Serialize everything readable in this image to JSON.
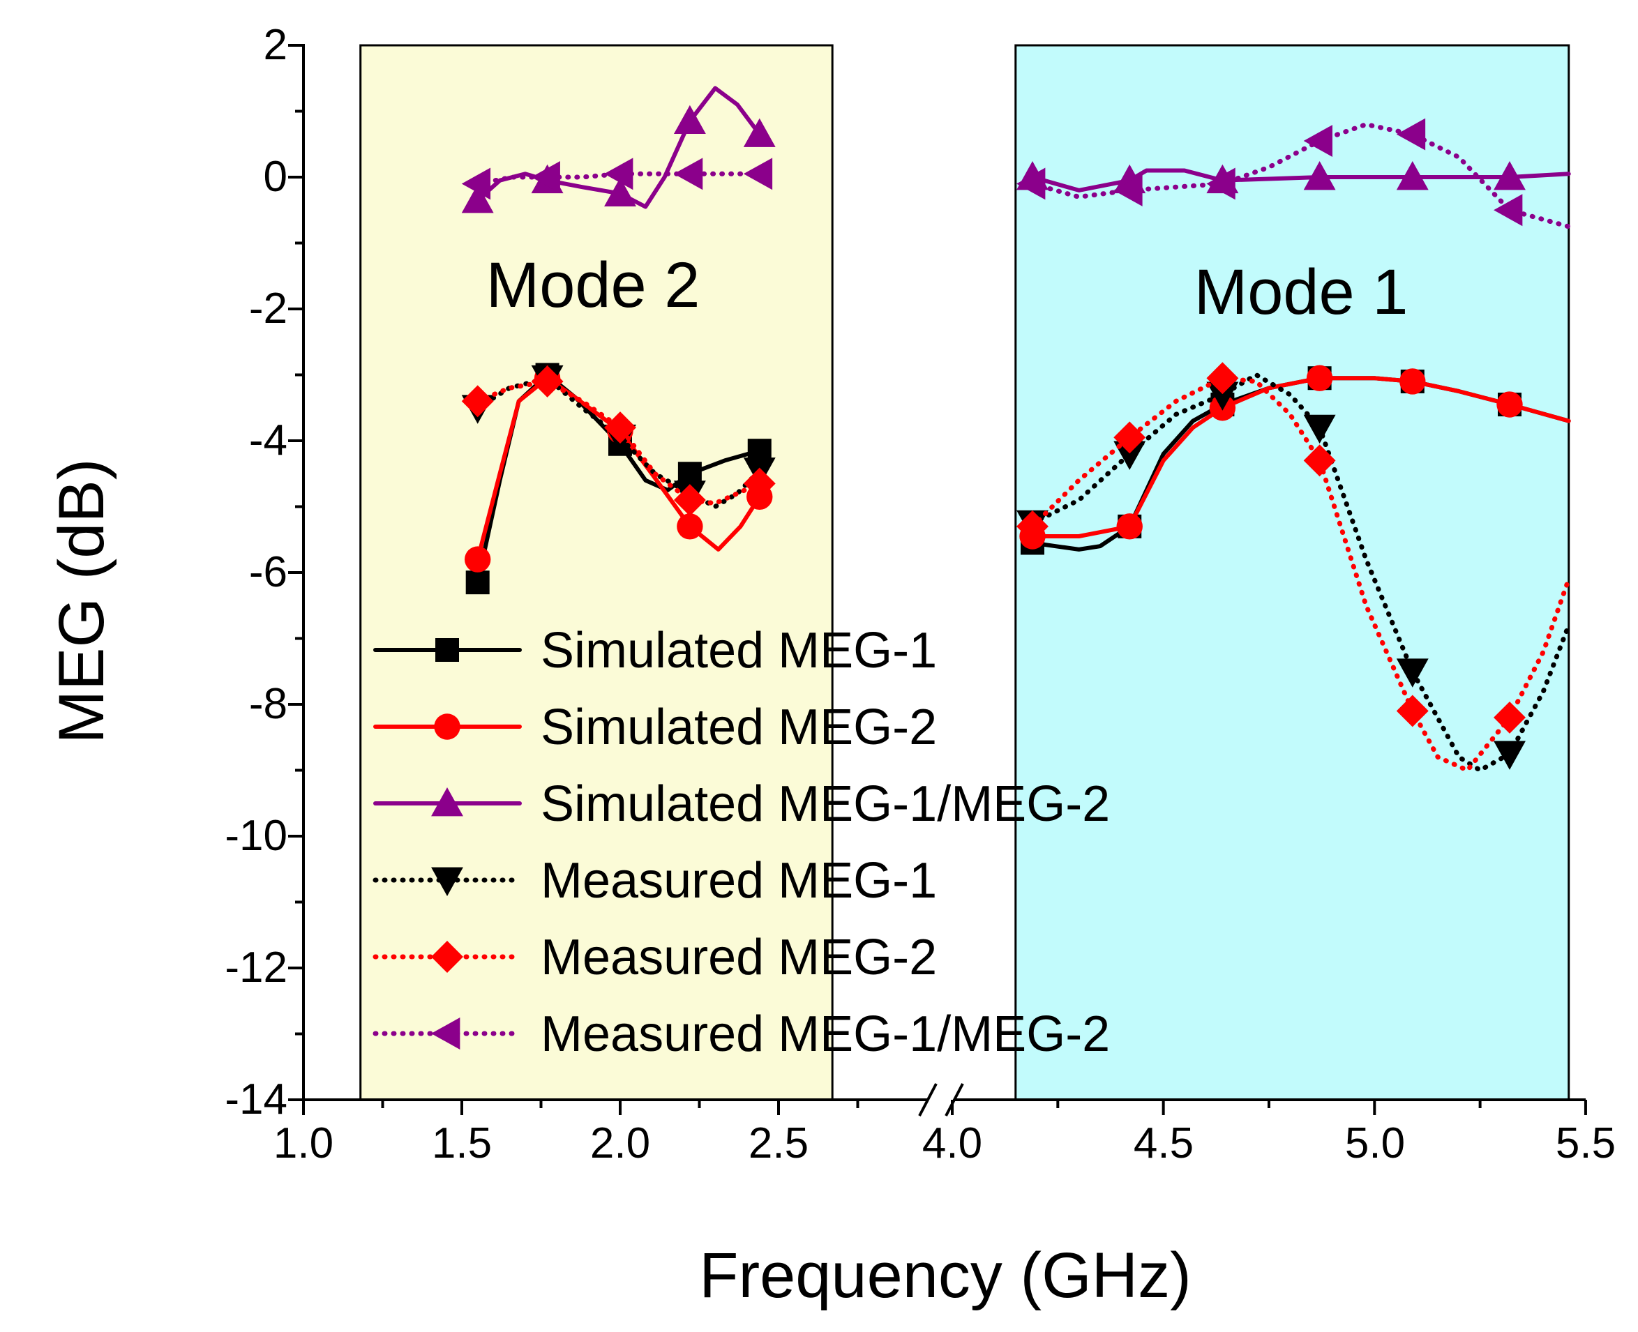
{
  "chart_data": {
    "type": "line",
    "xlabel": "Frequency (GHz)",
    "ylabel": "MEG (dB)",
    "ylim": [
      -14,
      2
    ],
    "y_ticks": [
      "2",
      "0",
      "-2",
      "-4",
      "-6",
      "-8",
      "-10",
      "-12",
      "-14"
    ],
    "x_ticks_left": [
      "1.0",
      "1.5",
      "2.0",
      "2.5"
    ],
    "x_ticks_right": [
      "4.0",
      "4.5",
      "5.0",
      "5.5"
    ],
    "x_axis": "broken axis: 1.0–2.75 GHz and 4.0–5.5 GHz",
    "regions": [
      {
        "label": "Mode 2",
        "x_start": 1.18,
        "x_end": 2.67,
        "color": "#fbfbd7"
      },
      {
        "label": "Mode 1",
        "x_start": 4.15,
        "x_end": 5.46,
        "color": "#c2fbfc"
      }
    ],
    "series": [
      {
        "name": "Simulated MEG-1",
        "color": "#000000",
        "style": "solid",
        "marker": "square",
        "markers_x": [
          1.55,
          1.77,
          2.0,
          2.22,
          2.44,
          4.19,
          4.42,
          4.64,
          4.87,
          5.09,
          5.32
        ],
        "markers_y": [
          -6.15,
          -3.0,
          -4.05,
          -4.5,
          -4.15,
          -5.55,
          -5.3,
          -3.45,
          -3.05,
          -3.1,
          -3.45
        ],
        "curve": [
          [
            1.55,
            -6.15
          ],
          [
            1.62,
            -4.6
          ],
          [
            1.68,
            -3.4
          ],
          [
            1.77,
            -3.0
          ],
          [
            1.86,
            -3.35
          ],
          [
            1.93,
            -3.7
          ],
          [
            2.0,
            -4.05
          ],
          [
            2.08,
            -4.6
          ],
          [
            2.15,
            -4.75
          ],
          [
            2.22,
            -4.5
          ],
          [
            2.33,
            -4.3
          ],
          [
            2.44,
            -4.15
          ],
          [
            null,
            null
          ],
          [
            4.19,
            -5.55
          ],
          [
            4.3,
            -5.65
          ],
          [
            4.35,
            -5.6
          ],
          [
            4.42,
            -5.3
          ],
          [
            4.5,
            -4.2
          ],
          [
            4.57,
            -3.7
          ],
          [
            4.64,
            -3.45
          ],
          [
            4.75,
            -3.2
          ],
          [
            4.87,
            -3.05
          ],
          [
            5.0,
            -3.05
          ],
          [
            5.09,
            -3.1
          ],
          [
            5.2,
            -3.25
          ],
          [
            5.32,
            -3.45
          ],
          [
            5.46,
            -3.7
          ]
        ]
      },
      {
        "name": "Simulated MEG-2",
        "color": "#ff0000",
        "style": "solid",
        "marker": "circle",
        "markers_x": [
          1.55,
          1.77,
          2.0,
          2.22,
          2.44,
          4.19,
          4.42,
          4.64,
          4.87,
          5.09,
          5.32
        ],
        "markers_y": [
          -5.8,
          -3.05,
          -3.85,
          -5.3,
          -4.85,
          -5.45,
          -5.3,
          -3.5,
          -3.05,
          -3.1,
          -3.45
        ],
        "curve": [
          [
            1.55,
            -5.8
          ],
          [
            1.62,
            -4.5
          ],
          [
            1.68,
            -3.4
          ],
          [
            1.77,
            -3.05
          ],
          [
            1.86,
            -3.35
          ],
          [
            1.93,
            -3.6
          ],
          [
            2.0,
            -3.85
          ],
          [
            2.1,
            -4.5
          ],
          [
            2.22,
            -5.3
          ],
          [
            2.31,
            -5.65
          ],
          [
            2.38,
            -5.3
          ],
          [
            2.44,
            -4.85
          ],
          [
            null,
            null
          ],
          [
            4.19,
            -5.45
          ],
          [
            4.3,
            -5.45
          ],
          [
            4.42,
            -5.3
          ],
          [
            4.5,
            -4.3
          ],
          [
            4.57,
            -3.8
          ],
          [
            4.64,
            -3.5
          ],
          [
            4.75,
            -3.2
          ],
          [
            4.87,
            -3.05
          ],
          [
            5.0,
            -3.05
          ],
          [
            5.09,
            -3.1
          ],
          [
            5.2,
            -3.25
          ],
          [
            5.32,
            -3.45
          ],
          [
            5.46,
            -3.7
          ]
        ]
      },
      {
        "name": "Simulated MEG-1/MEG-2",
        "color": "#8b008b",
        "style": "solid",
        "marker": "triangle-up",
        "markers_x": [
          1.55,
          1.77,
          2.0,
          2.22,
          2.44,
          4.19,
          4.42,
          4.64,
          4.87,
          5.09,
          5.32
        ],
        "markers_y": [
          -0.35,
          -0.05,
          -0.25,
          0.85,
          0.65,
          0.0,
          -0.05,
          -0.05,
          0.0,
          0.0,
          0.0
        ],
        "curve": [
          [
            1.55,
            -0.35
          ],
          [
            1.62,
            -0.05
          ],
          [
            1.7,
            0.05
          ],
          [
            1.77,
            -0.05
          ],
          [
            1.88,
            -0.15
          ],
          [
            2.0,
            -0.25
          ],
          [
            2.08,
            -0.45
          ],
          [
            2.14,
            0.0
          ],
          [
            2.22,
            0.85
          ],
          [
            2.3,
            1.35
          ],
          [
            2.37,
            1.1
          ],
          [
            2.44,
            0.65
          ],
          [
            null,
            null
          ],
          [
            4.19,
            0.0
          ],
          [
            4.3,
            -0.2
          ],
          [
            4.42,
            -0.05
          ],
          [
            4.46,
            0.1
          ],
          [
            4.55,
            0.1
          ],
          [
            4.64,
            -0.05
          ],
          [
            4.87,
            0.0
          ],
          [
            5.09,
            0.0
          ],
          [
            5.32,
            0.0
          ],
          [
            5.46,
            0.05
          ]
        ]
      },
      {
        "name": "Measured MEG-1",
        "color": "#000000",
        "style": "dotted",
        "marker": "triangle-down",
        "markers_x": [
          1.55,
          1.77,
          2.0,
          2.22,
          2.44,
          4.19,
          4.42,
          4.64,
          4.87,
          5.09,
          5.32
        ],
        "markers_y": [
          -3.5,
          -3.05,
          -3.95,
          -4.8,
          -4.45,
          -5.25,
          -4.2,
          -3.3,
          -3.8,
          -7.5,
          -8.75
        ],
        "curve": [
          [
            1.55,
            -3.5
          ],
          [
            1.65,
            -3.2
          ],
          [
            1.77,
            -3.05
          ],
          [
            1.88,
            -3.5
          ],
          [
            2.0,
            -3.95
          ],
          [
            2.11,
            -4.5
          ],
          [
            2.22,
            -4.8
          ],
          [
            2.3,
            -5.0
          ],
          [
            2.37,
            -4.8
          ],
          [
            2.44,
            -4.45
          ],
          [
            null,
            null
          ],
          [
            4.19,
            -5.25
          ],
          [
            4.3,
            -4.9
          ],
          [
            4.42,
            -4.2
          ],
          [
            4.53,
            -3.6
          ],
          [
            4.64,
            -3.3
          ],
          [
            4.72,
            -3.0
          ],
          [
            4.8,
            -3.3
          ],
          [
            4.87,
            -3.8
          ],
          [
            4.98,
            -5.8
          ],
          [
            5.09,
            -7.5
          ],
          [
            5.2,
            -8.8
          ],
          [
            5.25,
            -9.0
          ],
          [
            5.32,
            -8.75
          ],
          [
            5.4,
            -7.8
          ],
          [
            5.46,
            -6.8
          ]
        ]
      },
      {
        "name": "Measured MEG-2",
        "color": "#ff0000",
        "style": "dotted",
        "marker": "diamond",
        "markers_x": [
          1.55,
          1.77,
          2.0,
          2.22,
          2.44,
          4.19,
          4.42,
          4.64,
          4.87,
          5.09,
          5.32
        ],
        "markers_y": [
          -3.4,
          -3.1,
          -3.8,
          -4.9,
          -4.65,
          -5.3,
          -3.95,
          -3.05,
          -4.3,
          -8.1,
          -8.2
        ],
        "curve": [
          [
            1.55,
            -3.4
          ],
          [
            1.65,
            -3.2
          ],
          [
            1.77,
            -3.1
          ],
          [
            1.88,
            -3.4
          ],
          [
            2.0,
            -3.8
          ],
          [
            2.11,
            -4.5
          ],
          [
            2.22,
            -4.9
          ],
          [
            2.3,
            -4.95
          ],
          [
            2.37,
            -4.8
          ],
          [
            2.44,
            -4.65
          ],
          [
            null,
            null
          ],
          [
            4.19,
            -5.3
          ],
          [
            4.3,
            -4.6
          ],
          [
            4.42,
            -3.95
          ],
          [
            4.53,
            -3.4
          ],
          [
            4.64,
            -3.05
          ],
          [
            4.72,
            -3.1
          ],
          [
            4.8,
            -3.6
          ],
          [
            4.87,
            -4.3
          ],
          [
            4.98,
            -6.5
          ],
          [
            5.09,
            -8.1
          ],
          [
            5.15,
            -8.8
          ],
          [
            5.22,
            -9.0
          ],
          [
            5.32,
            -8.2
          ],
          [
            5.4,
            -7.2
          ],
          [
            5.46,
            -6.1
          ]
        ]
      },
      {
        "name": "Measured MEG-1/MEG-2",
        "color": "#8b008b",
        "style": "dotted",
        "marker": "triangle-left",
        "markers_x": [
          1.55,
          1.77,
          2.0,
          2.22,
          2.44,
          4.19,
          4.42,
          4.64,
          4.87,
          5.09,
          5.32
        ],
        "markers_y": [
          -0.1,
          0.0,
          0.05,
          0.05,
          0.05,
          -0.1,
          -0.2,
          -0.1,
          0.55,
          0.65,
          -0.5
        ],
        "curve": [
          [
            1.55,
            -0.1
          ],
          [
            1.66,
            0.0
          ],
          [
            1.77,
            0.0
          ],
          [
            1.88,
            0.0
          ],
          [
            2.0,
            0.05
          ],
          [
            2.11,
            0.05
          ],
          [
            2.22,
            0.05
          ],
          [
            2.33,
            0.05
          ],
          [
            2.44,
            0.05
          ],
          [
            null,
            null
          ],
          [
            4.19,
            -0.1
          ],
          [
            4.3,
            -0.3
          ],
          [
            4.42,
            -0.2
          ],
          [
            4.53,
            -0.15
          ],
          [
            4.64,
            -0.1
          ],
          [
            4.75,
            0.15
          ],
          [
            4.87,
            0.55
          ],
          [
            4.98,
            0.8
          ],
          [
            5.09,
            0.65
          ],
          [
            5.2,
            0.3
          ],
          [
            5.32,
            -0.5
          ],
          [
            5.46,
            -0.75
          ]
        ]
      }
    ]
  }
}
